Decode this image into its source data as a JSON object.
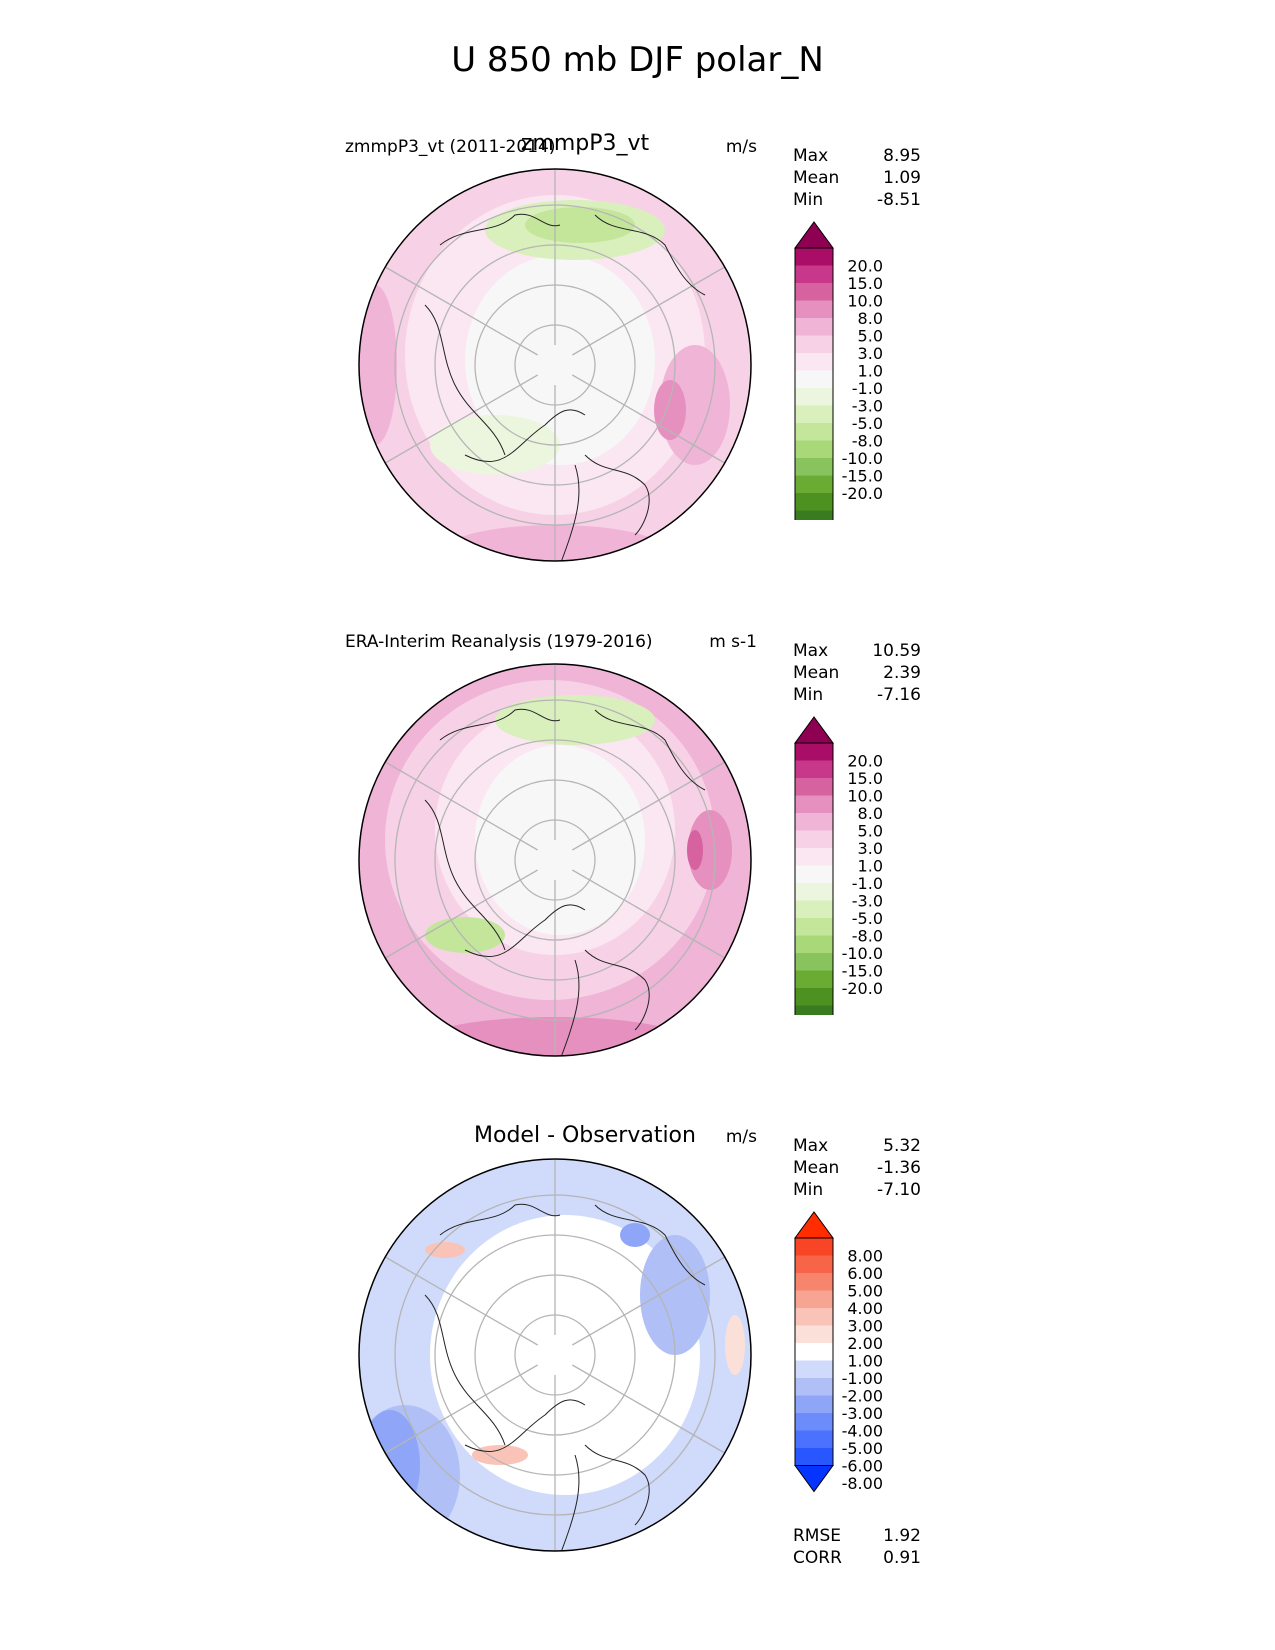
{
  "suptitle": "U 850 mb DJF polar_N",
  "panels": [
    {
      "title": "zmmpP3_vt",
      "subtitle": "zmmpP3_vt (2011-2014)",
      "units": "m/s",
      "stats": [
        {
          "label": "Max",
          "value": "8.95"
        },
        {
          "label": "Mean",
          "value": "1.09"
        },
        {
          "label": "Min",
          "value": "-8.51"
        }
      ],
      "colorbar": {
        "ticks": [
          "20.0",
          "15.0",
          "10.0",
          "8.0",
          "5.0",
          "3.0",
          "1.0",
          "-1.0",
          "-3.0",
          "-5.0",
          "-8.0",
          "-10.0",
          "-15.0",
          "-20.0"
        ],
        "colors": [
          "#276419",
          "#397c1f",
          "#4d9221",
          "#6aac33",
          "#89c35d",
          "#a9d879",
          "#c4e69b",
          "#d9efbc",
          "#ecf6de",
          "#f7f7f7",
          "#fbe7f1",
          "#f7d2e6",
          "#efb4d6",
          "#e590bf",
          "#d6629f",
          "#c7388a",
          "#a90d65",
          "#8e0152"
        ],
        "top_color": "#8e0152",
        "bottom_color": "#276419"
      }
    },
    {
      "title": "",
      "subtitle": "ERA-Interim Reanalysis (1979-2016)",
      "units": "m s-1",
      "stats": [
        {
          "label": "Max",
          "value": "10.59"
        },
        {
          "label": "Mean",
          "value": "2.39"
        },
        {
          "label": "Min",
          "value": "-7.16"
        }
      ],
      "colorbar": {
        "ticks": [
          "20.0",
          "15.0",
          "10.0",
          "8.0",
          "5.0",
          "3.0",
          "1.0",
          "-1.0",
          "-3.0",
          "-5.0",
          "-8.0",
          "-10.0",
          "-15.0",
          "-20.0"
        ],
        "colors": [
          "#276419",
          "#397c1f",
          "#4d9221",
          "#6aac33",
          "#89c35d",
          "#a9d879",
          "#c4e69b",
          "#d9efbc",
          "#ecf6de",
          "#f7f7f7",
          "#fbe7f1",
          "#f7d2e6",
          "#efb4d6",
          "#e590bf",
          "#d6629f",
          "#c7388a",
          "#a90d65",
          "#8e0152"
        ],
        "top_color": "#8e0152",
        "bottom_color": "#276419"
      }
    },
    {
      "title": "Model - Observation",
      "subtitle": "",
      "units": "m/s",
      "stats": [
        {
          "label": "Max",
          "value": "5.32"
        },
        {
          "label": "Mean",
          "value": "-1.36"
        },
        {
          "label": "Min",
          "value": "-7.10"
        }
      ],
      "colorbar": {
        "ticks": [
          "8.00",
          "6.00",
          "5.00",
          "4.00",
          "3.00",
          "2.00",
          "1.00",
          "-1.00",
          "-2.00",
          "-3.00",
          "-4.00",
          "-5.00",
          "-6.00",
          "-8.00"
        ],
        "colors": [
          "#0534ff",
          "#2856ff",
          "#4a72ff",
          "#6d8cfc",
          "#8fa6f8",
          "#b0c0f6",
          "#d0dafa",
          "#ffffff",
          "#fbe0da",
          "#fac3b8",
          "#f8a493",
          "#f7856e",
          "#f76447",
          "#f74526",
          "#fc2a0a"
        ],
        "top_color": "#ff2d00",
        "bottom_color": "#0534ff"
      },
      "extra_stats": [
        {
          "label": "RMSE",
          "value": "1.92"
        },
        {
          "label": "CORR",
          "value": "0.91"
        }
      ]
    }
  ],
  "chart_data": [
    {
      "type": "heatmap",
      "projection": "north polar stereographic",
      "title": "zmmpP3_vt",
      "subtitle": "zmmpP3_vt (2011-2014)",
      "units": "m/s",
      "variable": "U 850 mb DJF",
      "max": 8.95,
      "mean": 1.09,
      "min": -8.51,
      "levels": [
        -20,
        -15,
        -10,
        -8,
        -5,
        -3,
        -1,
        1,
        3,
        5,
        8,
        10,
        15,
        20
      ]
    },
    {
      "type": "heatmap",
      "projection": "north polar stereographic",
      "title": "ERA-Interim Reanalysis (1979-2016)",
      "units": "m s-1",
      "variable": "U 850 mb DJF",
      "max": 10.59,
      "mean": 2.39,
      "min": -7.16,
      "levels": [
        -20,
        -15,
        -10,
        -8,
        -5,
        -3,
        -1,
        1,
        3,
        5,
        8,
        10,
        15,
        20
      ]
    },
    {
      "type": "heatmap",
      "projection": "north polar stereographic",
      "title": "Model - Observation",
      "units": "m/s",
      "variable": "U 850 mb DJF difference",
      "max": 5.32,
      "mean": -1.36,
      "min": -7.1,
      "rmse": 1.92,
      "corr": 0.91,
      "levels": [
        -8,
        -6,
        -5,
        -4,
        -3,
        -2,
        -1,
        1,
        2,
        3,
        4,
        5,
        6,
        8
      ]
    }
  ]
}
